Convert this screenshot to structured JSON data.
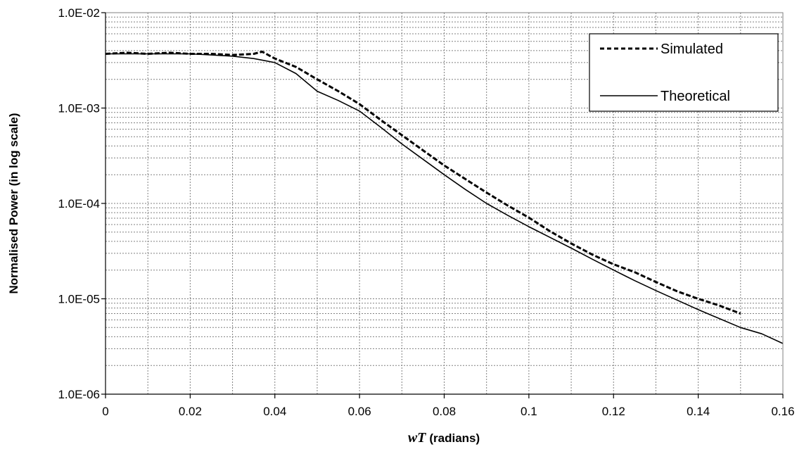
{
  "chart_data": {
    "type": "line",
    "title": "",
    "xlabel": "wT (radians)",
    "xlabel_parts": {
      "variable": "wT",
      "unit": "(radians)"
    },
    "ylabel": "Normalised Power (in log scale)",
    "xlim": [
      0,
      0.16
    ],
    "ylim": [
      1e-06,
      0.01
    ],
    "y_scale": "log",
    "x_ticks": [
      0,
      0.02,
      0.04,
      0.06,
      0.08,
      0.1,
      0.12,
      0.14,
      0.16
    ],
    "x_tick_labels": [
      "0",
      "0.02",
      "0.04",
      "0.06",
      "0.08",
      "0.1",
      "0.12",
      "0.14",
      "0.16"
    ],
    "y_ticks": [
      1e-06,
      1e-05,
      0.0001,
      0.001,
      0.01
    ],
    "y_tick_labels": [
      "1.0E-06",
      "1.0E-05",
      "1.0E-04",
      "1.0E-03",
      "1.0E-02"
    ],
    "grid": true,
    "legend_position": "top-right",
    "series": [
      {
        "name": "Simulated",
        "style": "dashed",
        "color": "#000000",
        "x": [
          0,
          0.005,
          0.01,
          0.015,
          0.02,
          0.025,
          0.03,
          0.035,
          0.037,
          0.04,
          0.045,
          0.05,
          0.055,
          0.06,
          0.065,
          0.07,
          0.075,
          0.08,
          0.085,
          0.09,
          0.095,
          0.1,
          0.105,
          0.11,
          0.115,
          0.12,
          0.125,
          0.13,
          0.135,
          0.14,
          0.145,
          0.15
        ],
        "y": [
          0.0037,
          0.0038,
          0.0037,
          0.0038,
          0.0037,
          0.0037,
          0.0036,
          0.0037,
          0.0039,
          0.0033,
          0.0027,
          0.002,
          0.0015,
          0.0011,
          0.00075,
          0.00052,
          0.00036,
          0.00025,
          0.00018,
          0.00013,
          9.51e-05,
          7.1e-05,
          5.1e-05,
          3.8e-05,
          2.9e-05,
          2.3e-05,
          1.9e-05,
          1.5e-05,
          1.2e-05,
          1e-05,
          8.5e-06,
          7e-06
        ]
      },
      {
        "name": "Theoretical",
        "style": "solid",
        "color": "#000000",
        "x": [
          0,
          0.005,
          0.01,
          0.015,
          0.02,
          0.025,
          0.03,
          0.035,
          0.04,
          0.045,
          0.05,
          0.055,
          0.06,
          0.065,
          0.07,
          0.075,
          0.08,
          0.085,
          0.09,
          0.095,
          0.1,
          0.105,
          0.11,
          0.115,
          0.12,
          0.125,
          0.13,
          0.135,
          0.14,
          0.145,
          0.15,
          0.155,
          0.16
        ],
        "y": [
          0.0037,
          0.0037,
          0.0037,
          0.0037,
          0.0037,
          0.0036,
          0.0035,
          0.0033,
          0.003,
          0.0023,
          0.0015,
          0.0012,
          0.00093,
          0.00063,
          0.00042,
          0.00029,
          0.0002,
          0.00014,
          0.0001,
          7.5e-05,
          5.7e-05,
          4.4e-05,
          3.4e-05,
          2.6e-05,
          2e-05,
          1.55e-05,
          1.22e-05,
          9.7e-06,
          7.7e-06,
          6.2e-06,
          5e-06,
          4.3e-06,
          3.4e-06
        ]
      }
    ]
  }
}
